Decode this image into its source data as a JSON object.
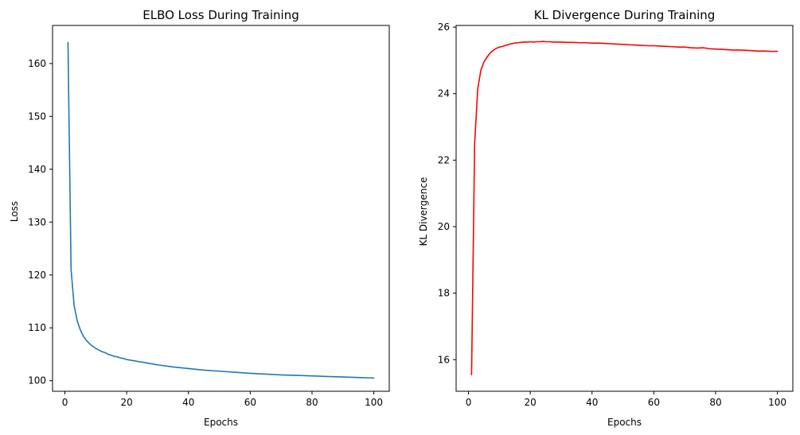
{
  "chart_data": [
    {
      "type": "line",
      "title": "ELBO Loss During Training",
      "xlabel": "Epochs",
      "ylabel": "Loss",
      "xlim": [
        -4,
        105
      ],
      "ylim": [
        98,
        167.2
      ],
      "xticks": [
        0,
        20,
        40,
        60,
        80,
        100
      ],
      "yticks": [
        100,
        110,
        120,
        130,
        140,
        150,
        160
      ],
      "grid": false,
      "series": [
        {
          "color": "#1f77b4",
          "x": [
            1,
            2,
            3,
            4,
            5,
            6,
            7,
            8,
            9,
            10,
            11,
            12,
            13,
            14,
            15,
            16,
            17,
            18,
            19,
            20,
            22,
            24,
            26,
            28,
            30,
            35,
            40,
            45,
            50,
            55,
            60,
            65,
            70,
            75,
            80,
            85,
            90,
            95,
            100
          ],
          "y": [
            164.0,
            121.0,
            114.2,
            111.3,
            109.6,
            108.4,
            107.6,
            107.0,
            106.5,
            106.1,
            105.8,
            105.5,
            105.3,
            105.0,
            104.8,
            104.6,
            104.5,
            104.3,
            104.2,
            104.0,
            103.8,
            103.6,
            103.4,
            103.2,
            103.0,
            102.6,
            102.3,
            102.0,
            101.8,
            101.6,
            101.4,
            101.25,
            101.1,
            101.0,
            100.9,
            100.8,
            100.7,
            100.6,
            100.5
          ]
        }
      ]
    },
    {
      "type": "line",
      "title": "KL Divergence During Training",
      "xlabel": "Epochs",
      "ylabel": "KL Divergence",
      "xlim": [
        -4,
        105
      ],
      "ylim": [
        15.05,
        26.05
      ],
      "xticks": [
        0,
        20,
        40,
        60,
        80,
        100
      ],
      "yticks": [
        16,
        18,
        20,
        22,
        24,
        26
      ],
      "grid": false,
      "series": [
        {
          "color": "#ff0000",
          "x": [
            1,
            2,
            3,
            4,
            5,
            6,
            7,
            8,
            9,
            10,
            11,
            12,
            13,
            14,
            15,
            16,
            17,
            18,
            19,
            20,
            21,
            22,
            23,
            24,
            25,
            26,
            28,
            30,
            32,
            34,
            36,
            38,
            40,
            42,
            44,
            46,
            48,
            50,
            52,
            54,
            56,
            58,
            60,
            62,
            64,
            66,
            68,
            70,
            72,
            74,
            76,
            78,
            80,
            82,
            84,
            86,
            88,
            90,
            92,
            94,
            96,
            98,
            100
          ],
          "y": [
            15.55,
            22.5,
            24.15,
            24.7,
            24.95,
            25.1,
            25.22,
            25.3,
            25.36,
            25.4,
            25.42,
            25.45,
            25.48,
            25.5,
            25.52,
            25.53,
            25.54,
            25.55,
            25.55,
            25.56,
            25.55,
            25.56,
            25.56,
            25.57,
            25.56,
            25.56,
            25.55,
            25.55,
            25.54,
            25.54,
            25.53,
            25.53,
            25.52,
            25.52,
            25.51,
            25.5,
            25.49,
            25.48,
            25.47,
            25.46,
            25.45,
            25.44,
            25.44,
            25.43,
            25.42,
            25.41,
            25.4,
            25.4,
            25.38,
            25.37,
            25.38,
            25.35,
            25.34,
            25.33,
            25.32,
            25.31,
            25.31,
            25.3,
            25.29,
            25.28,
            25.28,
            25.27,
            25.27
          ]
        }
      ]
    }
  ]
}
